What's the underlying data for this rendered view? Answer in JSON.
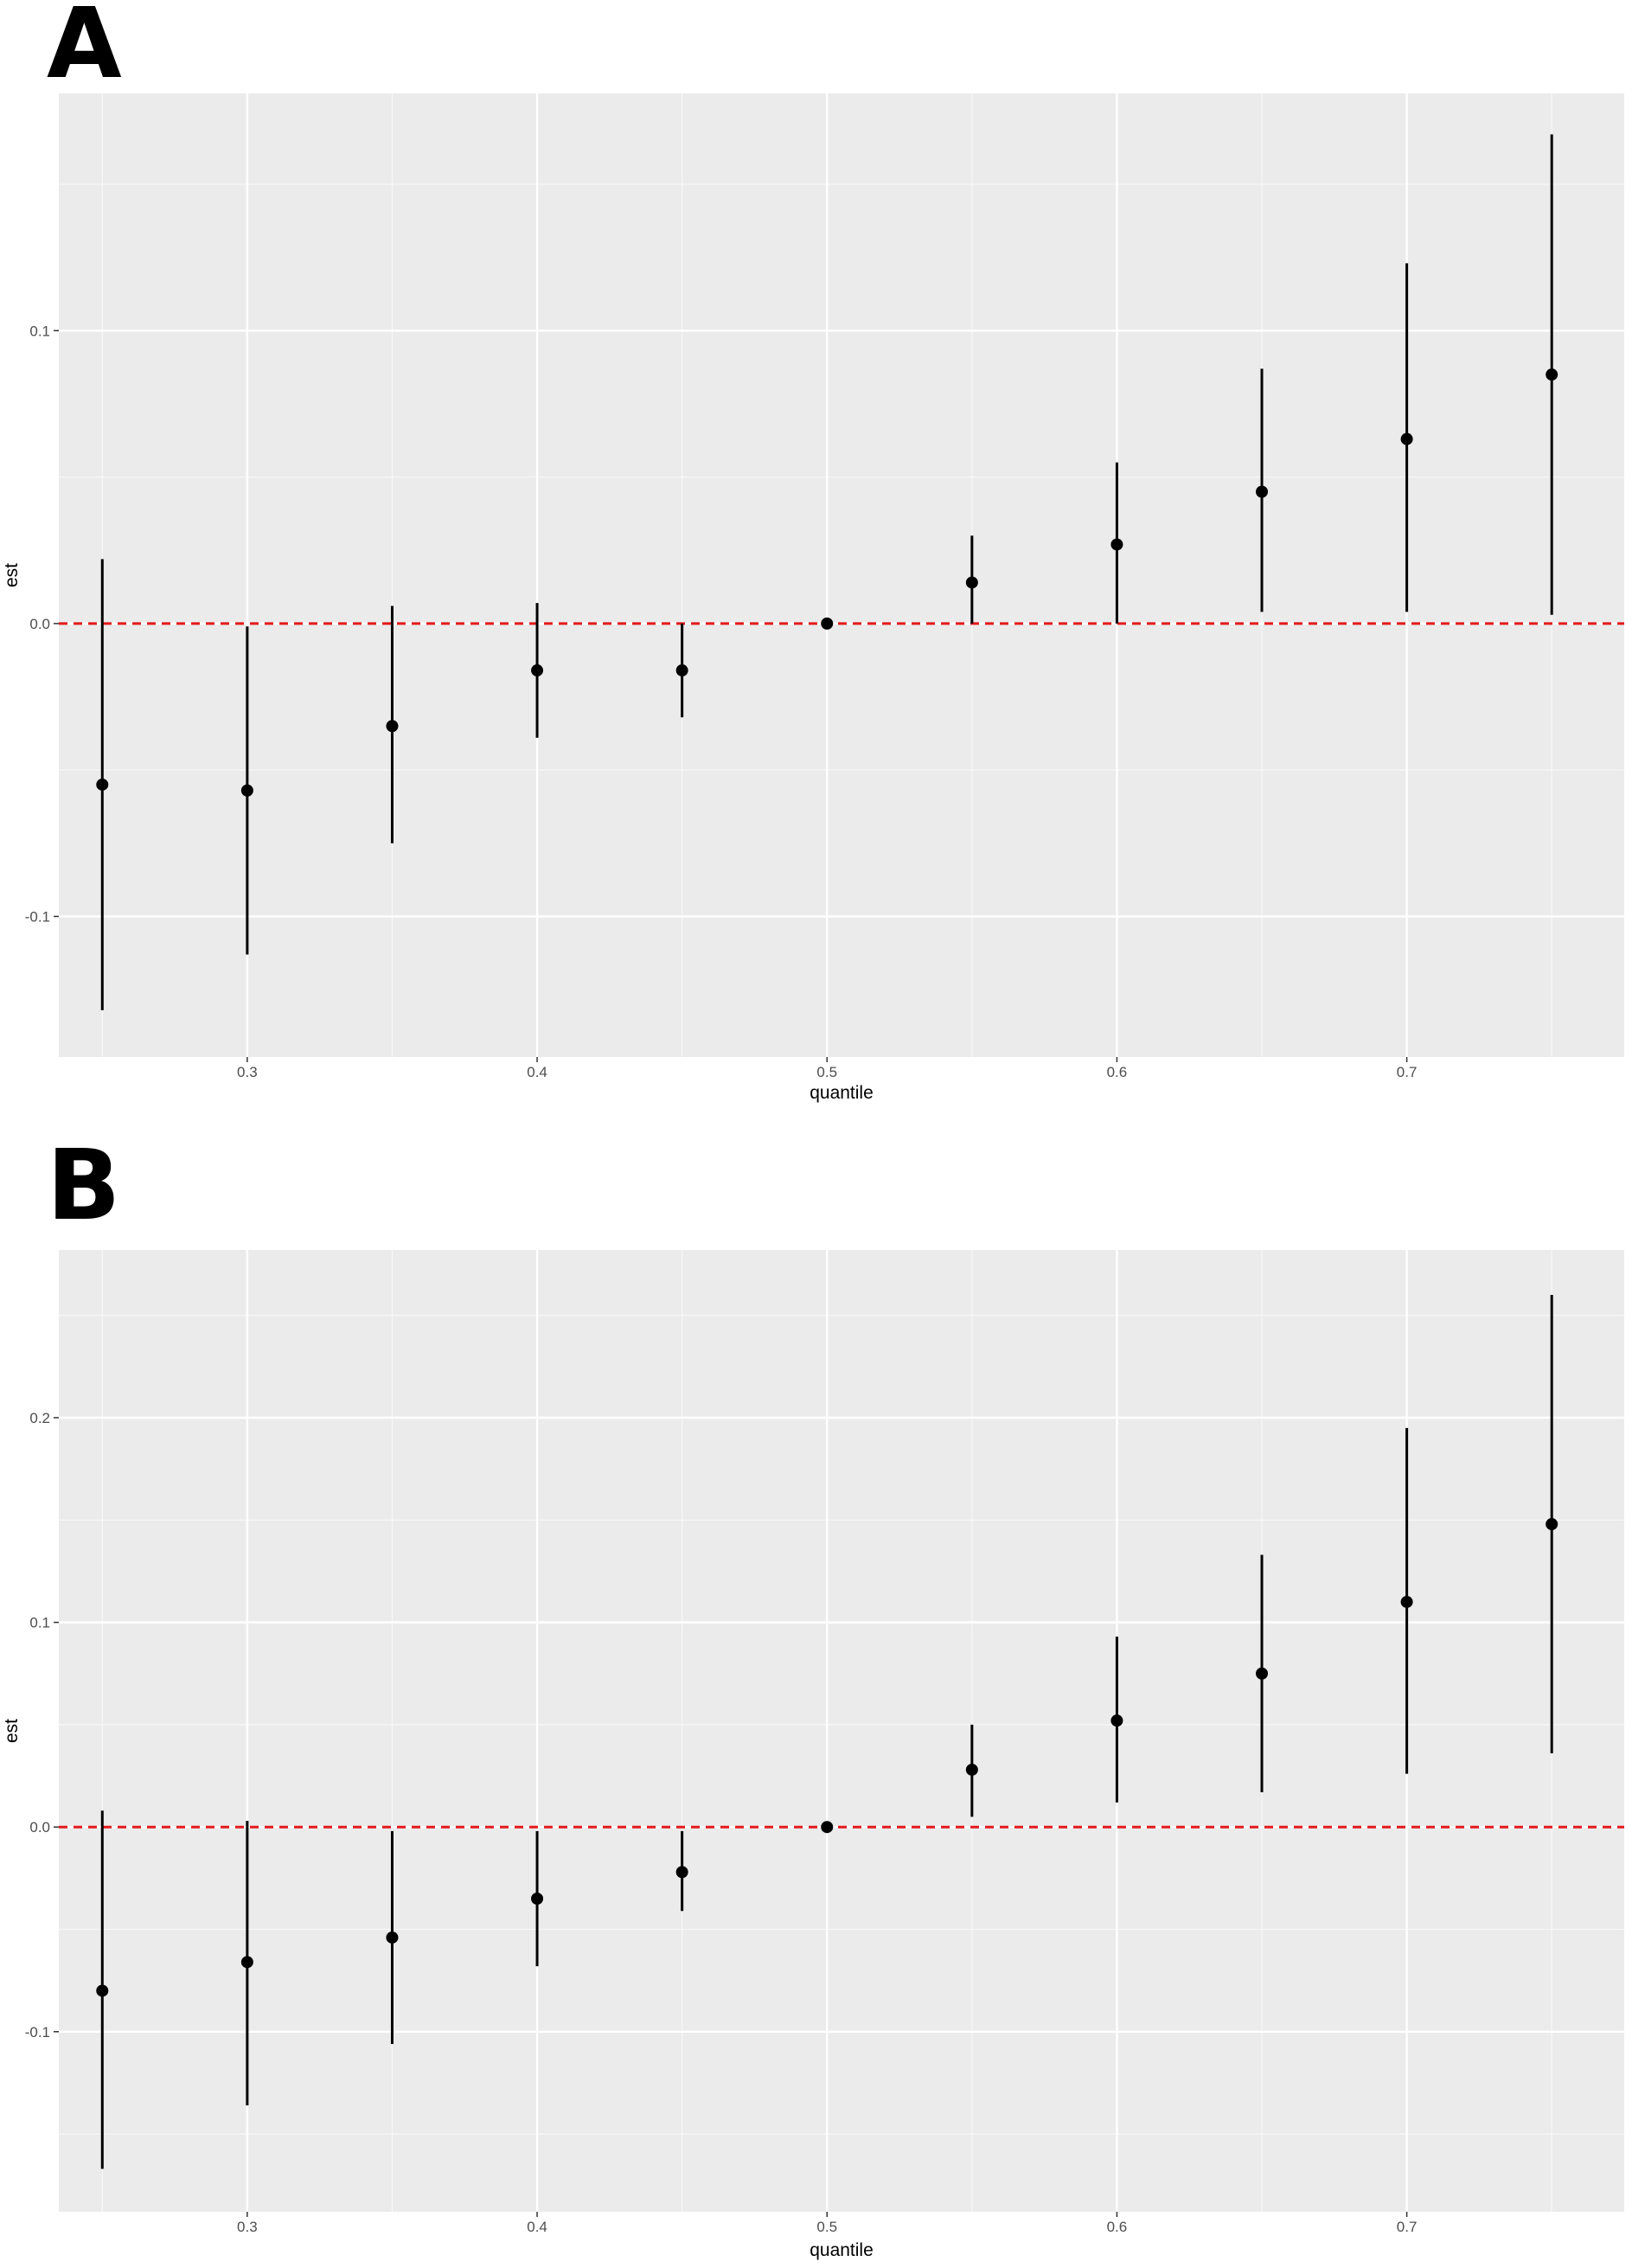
{
  "panels": [
    {
      "label": "A",
      "chart_data": {
        "type": "scatter",
        "subtype": "point-range",
        "xlabel": "quantile",
        "ylabel": "est",
        "xlim": [
          0.235,
          0.775
        ],
        "ylim": [
          -0.148,
          0.181
        ],
        "xticks": [
          0.3,
          0.4,
          0.5,
          0.6,
          0.7
        ],
        "xtick_labels": [
          "0.3",
          "0.4",
          "0.5",
          "0.6",
          "0.7"
        ],
        "yticks": [
          -0.1,
          0.0,
          0.1
        ],
        "ytick_labels": [
          "-0.1",
          "0.0",
          "0.1"
        ],
        "grid": true,
        "reference_line": {
          "y": 0.0,
          "color": "#e41a1c",
          "style": "dashed"
        },
        "x": [
          0.25,
          0.3,
          0.35,
          0.4,
          0.45,
          0.5,
          0.55,
          0.6,
          0.65,
          0.7,
          0.75
        ],
        "est": [
          -0.055,
          -0.057,
          -0.035,
          -0.016,
          -0.016,
          0.0,
          0.014,
          0.027,
          0.045,
          0.063,
          0.085
        ],
        "lower": [
          -0.132,
          -0.113,
          -0.075,
          -0.039,
          -0.032,
          0.0,
          0.0,
          0.0,
          0.004,
          0.004,
          0.003
        ],
        "upper": [
          0.022,
          -0.001,
          0.006,
          0.007,
          0.0,
          0.0,
          0.03,
          0.055,
          0.087,
          0.123,
          0.167
        ]
      }
    },
    {
      "label": "B",
      "chart_data": {
        "type": "scatter",
        "subtype": "point-range",
        "xlabel": "quantile",
        "ylabel": "est",
        "xlim": [
          0.235,
          0.775
        ],
        "ylim": [
          -0.188,
          0.282
        ],
        "xticks": [
          0.3,
          0.4,
          0.5,
          0.6,
          0.7
        ],
        "xtick_labels": [
          "0.3",
          "0.4",
          "0.5",
          "0.6",
          "0.7"
        ],
        "yticks": [
          -0.1,
          0.0,
          0.1,
          0.2
        ],
        "ytick_labels": [
          "-0.1",
          "0.0",
          "0.1",
          "0.2"
        ],
        "grid": true,
        "reference_line": {
          "y": 0.0,
          "color": "#e41a1c",
          "style": "dashed"
        },
        "x": [
          0.25,
          0.3,
          0.35,
          0.4,
          0.45,
          0.5,
          0.55,
          0.6,
          0.65,
          0.7,
          0.75
        ],
        "est": [
          -0.08,
          -0.066,
          -0.054,
          -0.035,
          -0.022,
          0.0,
          0.028,
          0.052,
          0.075,
          0.11,
          0.148
        ],
        "lower": [
          -0.167,
          -0.136,
          -0.106,
          -0.068,
          -0.041,
          0.0,
          0.005,
          0.012,
          0.017,
          0.026,
          0.036
        ],
        "upper": [
          0.008,
          0.003,
          -0.002,
          -0.002,
          -0.002,
          0.0,
          0.05,
          0.093,
          0.133,
          0.195,
          0.26
        ]
      }
    }
  ]
}
